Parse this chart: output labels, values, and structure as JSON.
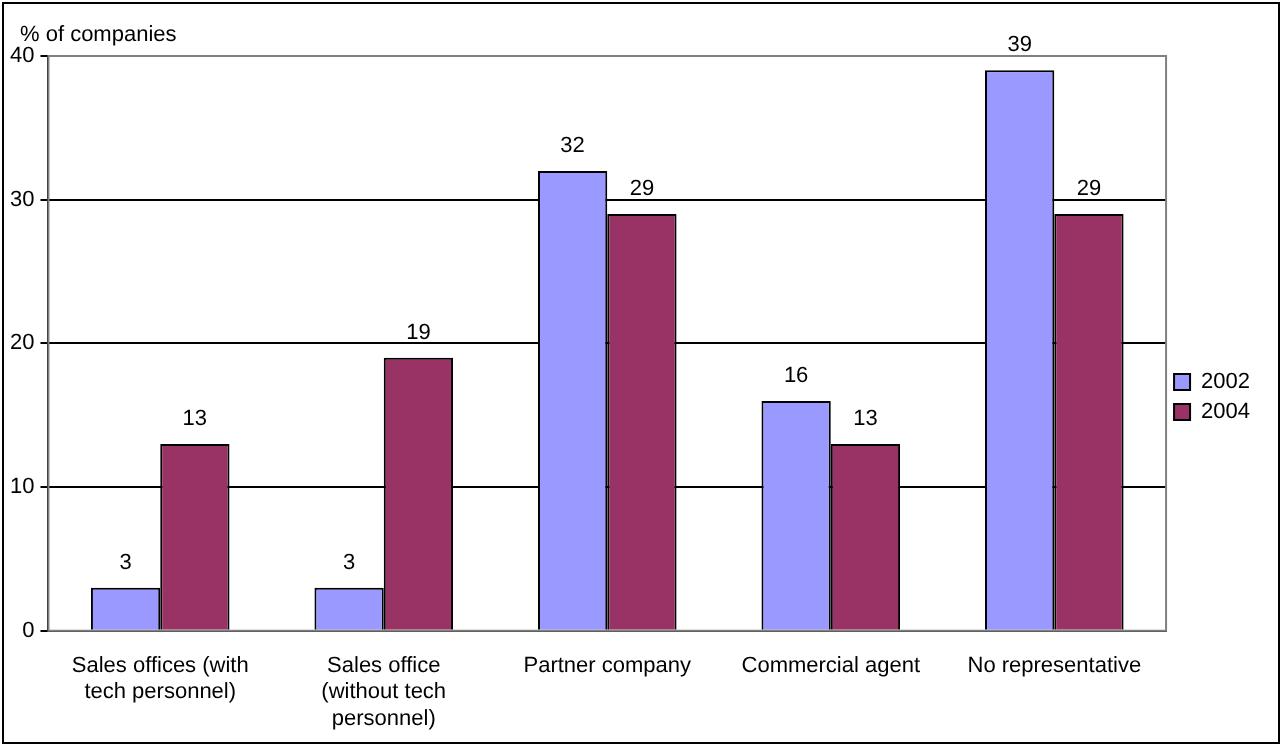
{
  "chart_data": {
    "type": "bar",
    "ylabel": "% of companies",
    "categories": [
      "Sales offices (with tech personnel)",
      "Sales office (without tech personnel)",
      "Partner company",
      "Commercial agent",
      "No representative"
    ],
    "series": [
      {
        "name": "2002",
        "color": "#9999ff",
        "values": [
          3,
          3,
          32,
          16,
          39
        ]
      },
      {
        "name": "2004",
        "color": "#993366",
        "values": [
          13,
          19,
          29,
          13,
          29
        ]
      }
    ],
    "ylim": [
      0,
      40
    ],
    "yticks": [
      0,
      10,
      20,
      30,
      40
    ],
    "grid": "y",
    "legend": "right",
    "data_labels": true
  }
}
